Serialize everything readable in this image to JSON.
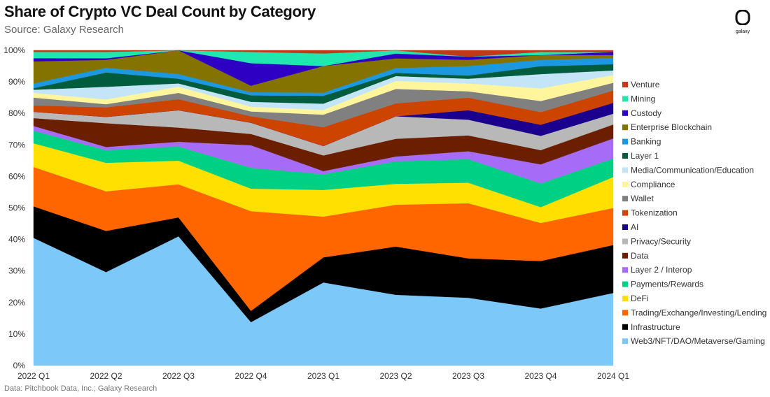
{
  "header": {
    "title": "Share of Crypto VC Deal Count by Category",
    "subtitle": "Source: Galaxy Research",
    "footnote": "Data: Pitchbook Data, Inc.; Galaxy Research",
    "logo_text": "galaxy"
  },
  "chart_data": {
    "type": "area",
    "stacked": true,
    "categories": [
      "2022 Q1",
      "2022 Q2",
      "2022 Q3",
      "2022 Q4",
      "2023 Q1",
      "2023 Q2",
      "2023 Q3",
      "2023 Q4",
      "2024 Q1"
    ],
    "ylim": [
      0,
      100
    ],
    "yticks": [
      "0%",
      "10%",
      "20%",
      "30%",
      "40%",
      "50%",
      "60%",
      "70%",
      "80%",
      "90%",
      "100%"
    ],
    "legend_position": "right",
    "series": [
      {
        "name": "Web3/NFT/DAO/Metaverse/Gaming",
        "color": "#7cc8f8",
        "values": [
          40.5,
          29.5,
          41.0,
          13.5,
          26.5,
          22.0,
          21.5,
          18.0,
          23.5
        ]
      },
      {
        "name": "Infrastructure",
        "color": "#000000",
        "values": [
          10.0,
          13.0,
          6.0,
          3.5,
          8.0,
          15.0,
          12.5,
          15.0,
          15.5
        ]
      },
      {
        "name": "Trading/Exchange/Investing/Lending",
        "color": "#ff6600",
        "values": [
          12.5,
          12.5,
          10.5,
          31.0,
          13.0,
          13.0,
          17.5,
          12.0,
          12.0
        ]
      },
      {
        "name": "DeFi",
        "color": "#ffe000",
        "values": [
          7.5,
          9.0,
          7.5,
          7.0,
          8.5,
          6.5,
          6.5,
          5.0,
          10.0
        ]
      },
      {
        "name": "Payments/Rewards",
        "color": "#00d084",
        "values": [
          4.0,
          4.0,
          4.5,
          6.5,
          5.0,
          7.0,
          7.5,
          7.5,
          6.0
        ]
      },
      {
        "name": "Layer 2 / Interop",
        "color": "#a66cf8",
        "values": [
          1.5,
          1.0,
          1.5,
          7.0,
          1.0,
          1.5,
          2.5,
          6.0,
          6.5
        ]
      },
      {
        "name": "Data",
        "color": "#6b1f00",
        "values": [
          2.5,
          7.5,
          4.5,
          3.5,
          5.0,
          5.5,
          5.0,
          4.5,
          4.5
        ]
      },
      {
        "name": "Privacy/Security",
        "color": "#b8b8b8",
        "values": [
          2.0,
          2.0,
          5.5,
          3.5,
          3.0,
          7.0,
          5.0,
          4.5,
          3.5
        ]
      },
      {
        "name": "AI",
        "color": "#1a008c",
        "values": [
          0.0,
          0.0,
          0.0,
          0.0,
          0.0,
          0.0,
          3.0,
          3.5,
          3.5
        ]
      },
      {
        "name": "Tokenization",
        "color": "#cc4400",
        "values": [
          2.0,
          3.0,
          3.5,
          2.0,
          6.0,
          4.0,
          4.0,
          4.0,
          4.0
        ]
      },
      {
        "name": "Wallet",
        "color": "#808080",
        "values": [
          2.5,
          1.0,
          2.0,
          1.5,
          4.0,
          4.5,
          2.0,
          3.5,
          2.5
        ]
      },
      {
        "name": "Compliance",
        "color": "#fff59c",
        "values": [
          1.5,
          1.5,
          2.0,
          1.5,
          1.5,
          2.5,
          2.5,
          4.0,
          2.5
        ]
      },
      {
        "name": "Media/Communication/Education",
        "color": "#c4e4f8",
        "values": [
          1.0,
          4.0,
          1.0,
          1.5,
          2.0,
          1.5,
          1.5,
          4.5,
          1.5
        ]
      },
      {
        "name": "Layer 1",
        "color": "#005c3c",
        "values": [
          0.5,
          4.5,
          1.5,
          2.0,
          2.5,
          1.0,
          1.0,
          2.5,
          2.0
        ]
      },
      {
        "name": "Banking",
        "color": "#1c98e0",
        "values": [
          1.5,
          1.5,
          1.5,
          1.0,
          1.0,
          1.5,
          3.0,
          2.0,
          2.0
        ]
      },
      {
        "name": "Enterprise Blockchain",
        "color": "#857300",
        "values": [
          7.0,
          2.5,
          7.5,
          2.0,
          8.5,
          3.0,
          2.0,
          1.5,
          1.0
        ]
      },
      {
        "name": "Custody",
        "color": "#2e00c4",
        "values": [
          1.0,
          0.5,
          0.0,
          7.0,
          0.0,
          1.5,
          1.0,
          0.0,
          1.0
        ]
      },
      {
        "name": "Mining",
        "color": "#20e6b0",
        "values": [
          2.0,
          2.0,
          0.0,
          3.5,
          4.0,
          1.0,
          0.0,
          1.0,
          0.0
        ]
      },
      {
        "name": "Venture",
        "color": "#c03a1a",
        "values": [
          0.5,
          0.5,
          0.0,
          0.5,
          1.0,
          0.0,
          2.0,
          0.5,
          0.5
        ]
      }
    ]
  }
}
